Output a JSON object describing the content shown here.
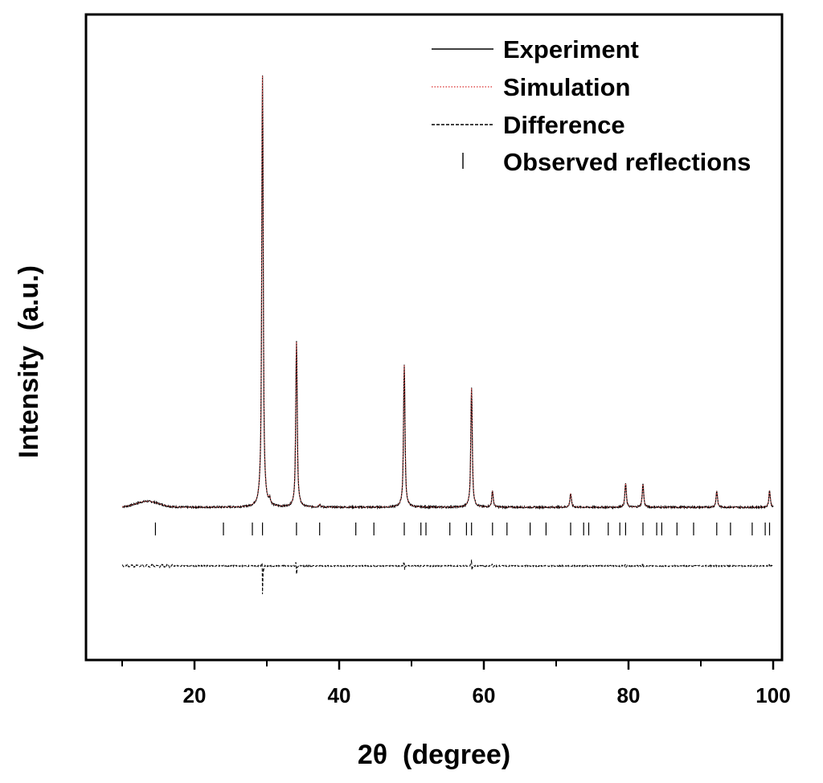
{
  "chart_data": {
    "type": "line",
    "title": "",
    "xlabel": "2θ  (degree)",
    "ylabel": "Intensity  (a.u.)",
    "xlim": [
      8,
      103
    ],
    "ylim": [
      0,
      100
    ],
    "x_ticks": [
      20,
      40,
      60,
      80,
      100
    ],
    "x_ticks_minor": [
      10,
      30,
      50,
      70,
      90
    ],
    "y_ticks": [],
    "grid": false,
    "legend": {
      "position": "top-right",
      "entries": [
        {
          "label": "Experiment",
          "style": "solid",
          "color": "#000000"
        },
        {
          "label": "Simulation",
          "style": "dotted",
          "color": "#e05050"
        },
        {
          "label": "Difference",
          "style": "dashed",
          "color": "#000000"
        },
        {
          "label": "Observed reflections",
          "style": "tick",
          "color": "#000000"
        }
      ]
    },
    "experiment": {
      "name": "Experiment",
      "baseline": 10.5,
      "hump": {
        "center": 13.5,
        "height": 1.3,
        "width": 2.2
      },
      "peaks": [
        {
          "x": 29.4,
          "height": 94
        },
        {
          "x": 30.4,
          "height": 1.2
        },
        {
          "x": 34.1,
          "height": 36
        },
        {
          "x": 37.3,
          "height": 0.6
        },
        {
          "x": 49.0,
          "height": 31
        },
        {
          "x": 58.3,
          "height": 26
        },
        {
          "x": 61.2,
          "height": 3.5
        },
        {
          "x": 72.0,
          "height": 3.0
        },
        {
          "x": 79.6,
          "height": 5.2
        },
        {
          "x": 82.0,
          "height": 5.0
        },
        {
          "x": 92.2,
          "height": 3.5
        },
        {
          "x": 99.5,
          "height": 3.6
        }
      ]
    },
    "simulation": {
      "name": "Simulation",
      "note": "overlays Experiment"
    },
    "difference": {
      "name": "Difference",
      "baseline": -4.5,
      "features": [
        {
          "x": 29.4,
          "up": 4,
          "down": 12
        },
        {
          "x": 34.1,
          "up": 4,
          "down": 4
        },
        {
          "x": 49.0,
          "up": 2.5,
          "down": 2
        },
        {
          "x": 58.3,
          "up": 2.8,
          "down": 2.6
        },
        {
          "x": 61.2,
          "up": 0.8,
          "down": 0.8
        },
        {
          "x": 79.6,
          "up": 0.8,
          "down": 0.6
        },
        {
          "x": 82.0,
          "up": 0.8,
          "down": 0.6
        },
        {
          "x": 99.5,
          "up": 0.6,
          "down": 0.6
        }
      ]
    },
    "observed_reflections": {
      "name": "Observed reflections",
      "positions": [
        14.6,
        24.0,
        28.0,
        29.4,
        34.1,
        37.3,
        42.3,
        44.8,
        49.0,
        51.3,
        52.0,
        55.3,
        57.6,
        58.3,
        61.2,
        63.2,
        66.4,
        68.6,
        72.0,
        73.8,
        74.5,
        77.2,
        78.8,
        79.6,
        82.0,
        83.9,
        84.6,
        86.7,
        89.0,
        92.2,
        94.1,
        97.1,
        98.9,
        99.5
      ]
    }
  }
}
